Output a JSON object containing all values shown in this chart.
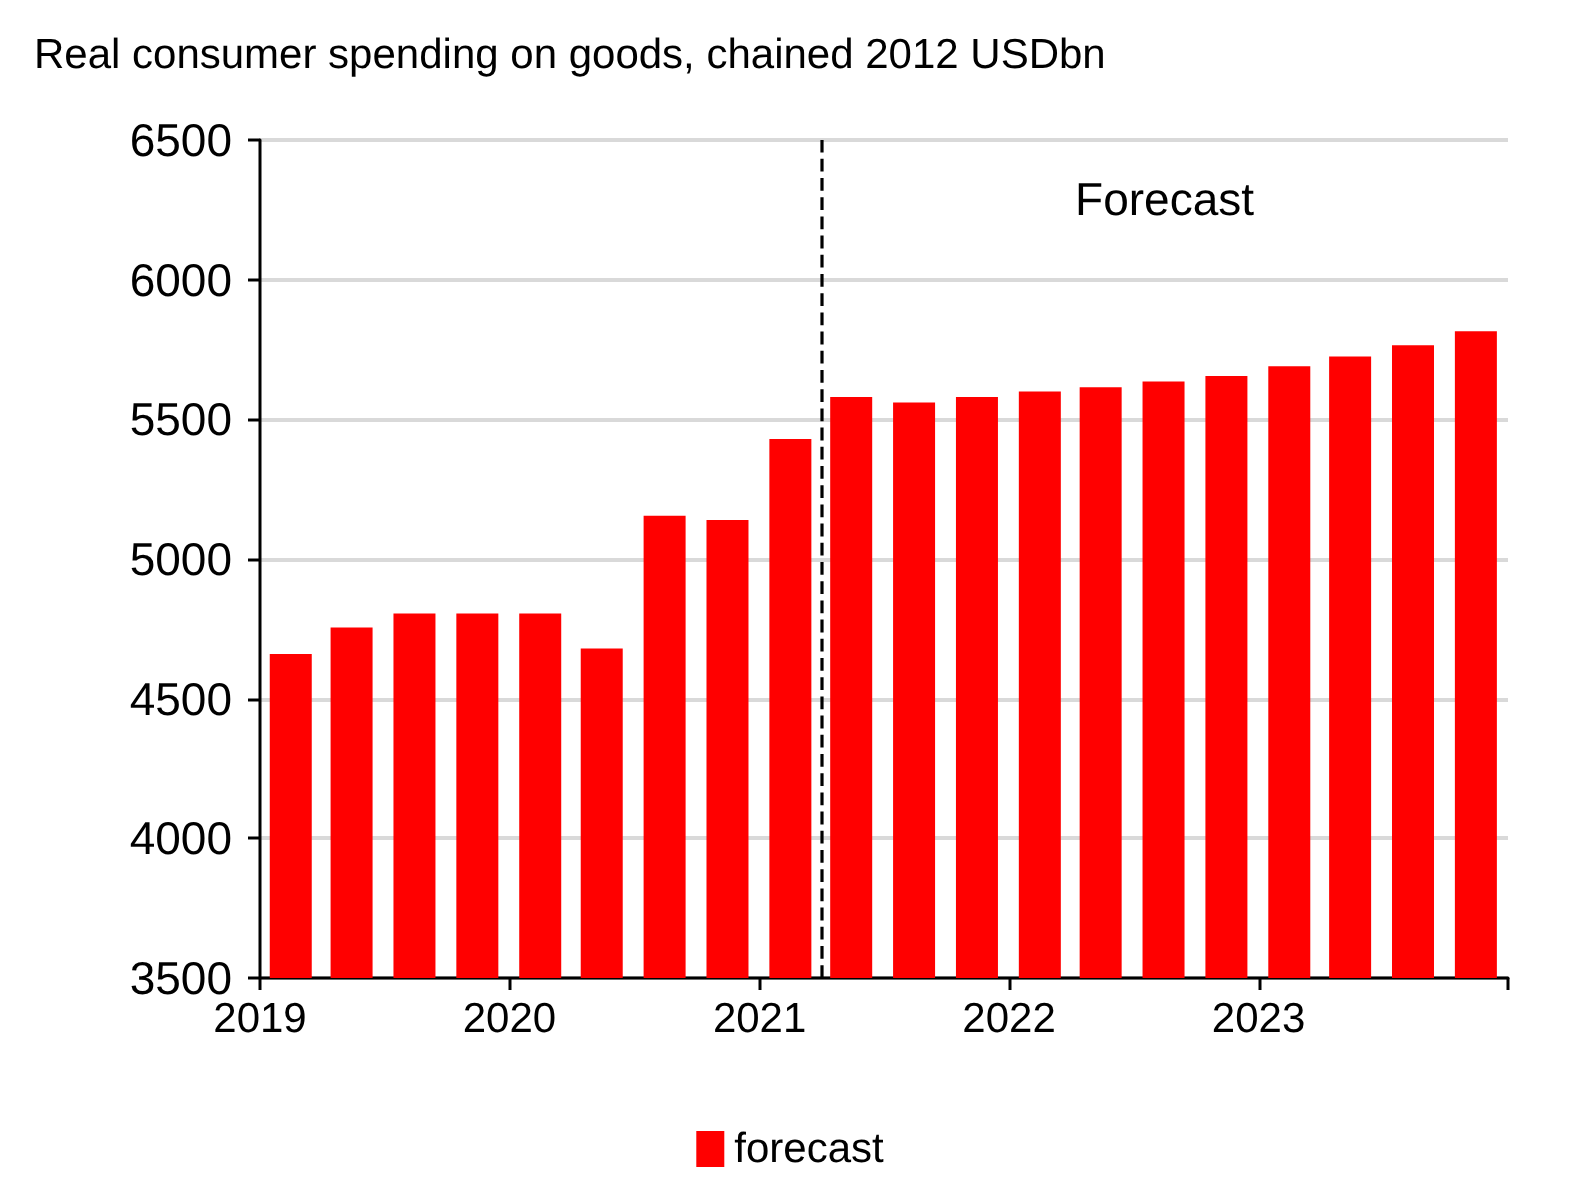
{
  "chart_data": {
    "type": "bar",
    "title": "Real consumer spending on goods, chained 2012 USDbn",
    "x": [
      "2019-02-15",
      "2019-05-15",
      "2019-08-15",
      "2019-11-15",
      "2020-02-15",
      "2020-05-15",
      "2020-08-15",
      "2020-11-15",
      "2021-02-15",
      "2021-05-15",
      "2021-08-15",
      "2021-11-15",
      "2022-02-15",
      "2022-05-15",
      "2022-08-15",
      "2022-11-15",
      "2023-02-15",
      "2023-05-15",
      "2023-08-15",
      "2023-11-15"
    ],
    "series": [
      {
        "name": "forecast",
        "color": "#ff0000",
        "values": [
          4660,
          4755,
          4805,
          4805,
          4805,
          4680,
          5155,
          5140,
          5430,
          5580,
          5560,
          5580,
          5600,
          5615,
          5635,
          5655,
          5690,
          5725,
          5765,
          5815
        ]
      }
    ],
    "xlim": [
      "2019",
      "2024"
    ],
    "xticks": [
      "2019",
      "2020",
      "2021",
      "2022",
      "2023",
      {
        "value": "2024",
        "label": null
      }
    ],
    "ylim": [
      3500,
      6500
    ],
    "yticks": [
      3500,
      4000,
      4500,
      5000,
      5500,
      6000,
      6500
    ],
    "ref_lines": [
      {
        "axis": "x",
        "value": "2021-04",
        "label": "Forecast",
        "color": "#000000",
        "line_style": "dashed"
      }
    ],
    "grid": "y",
    "legend": "bottom"
  }
}
